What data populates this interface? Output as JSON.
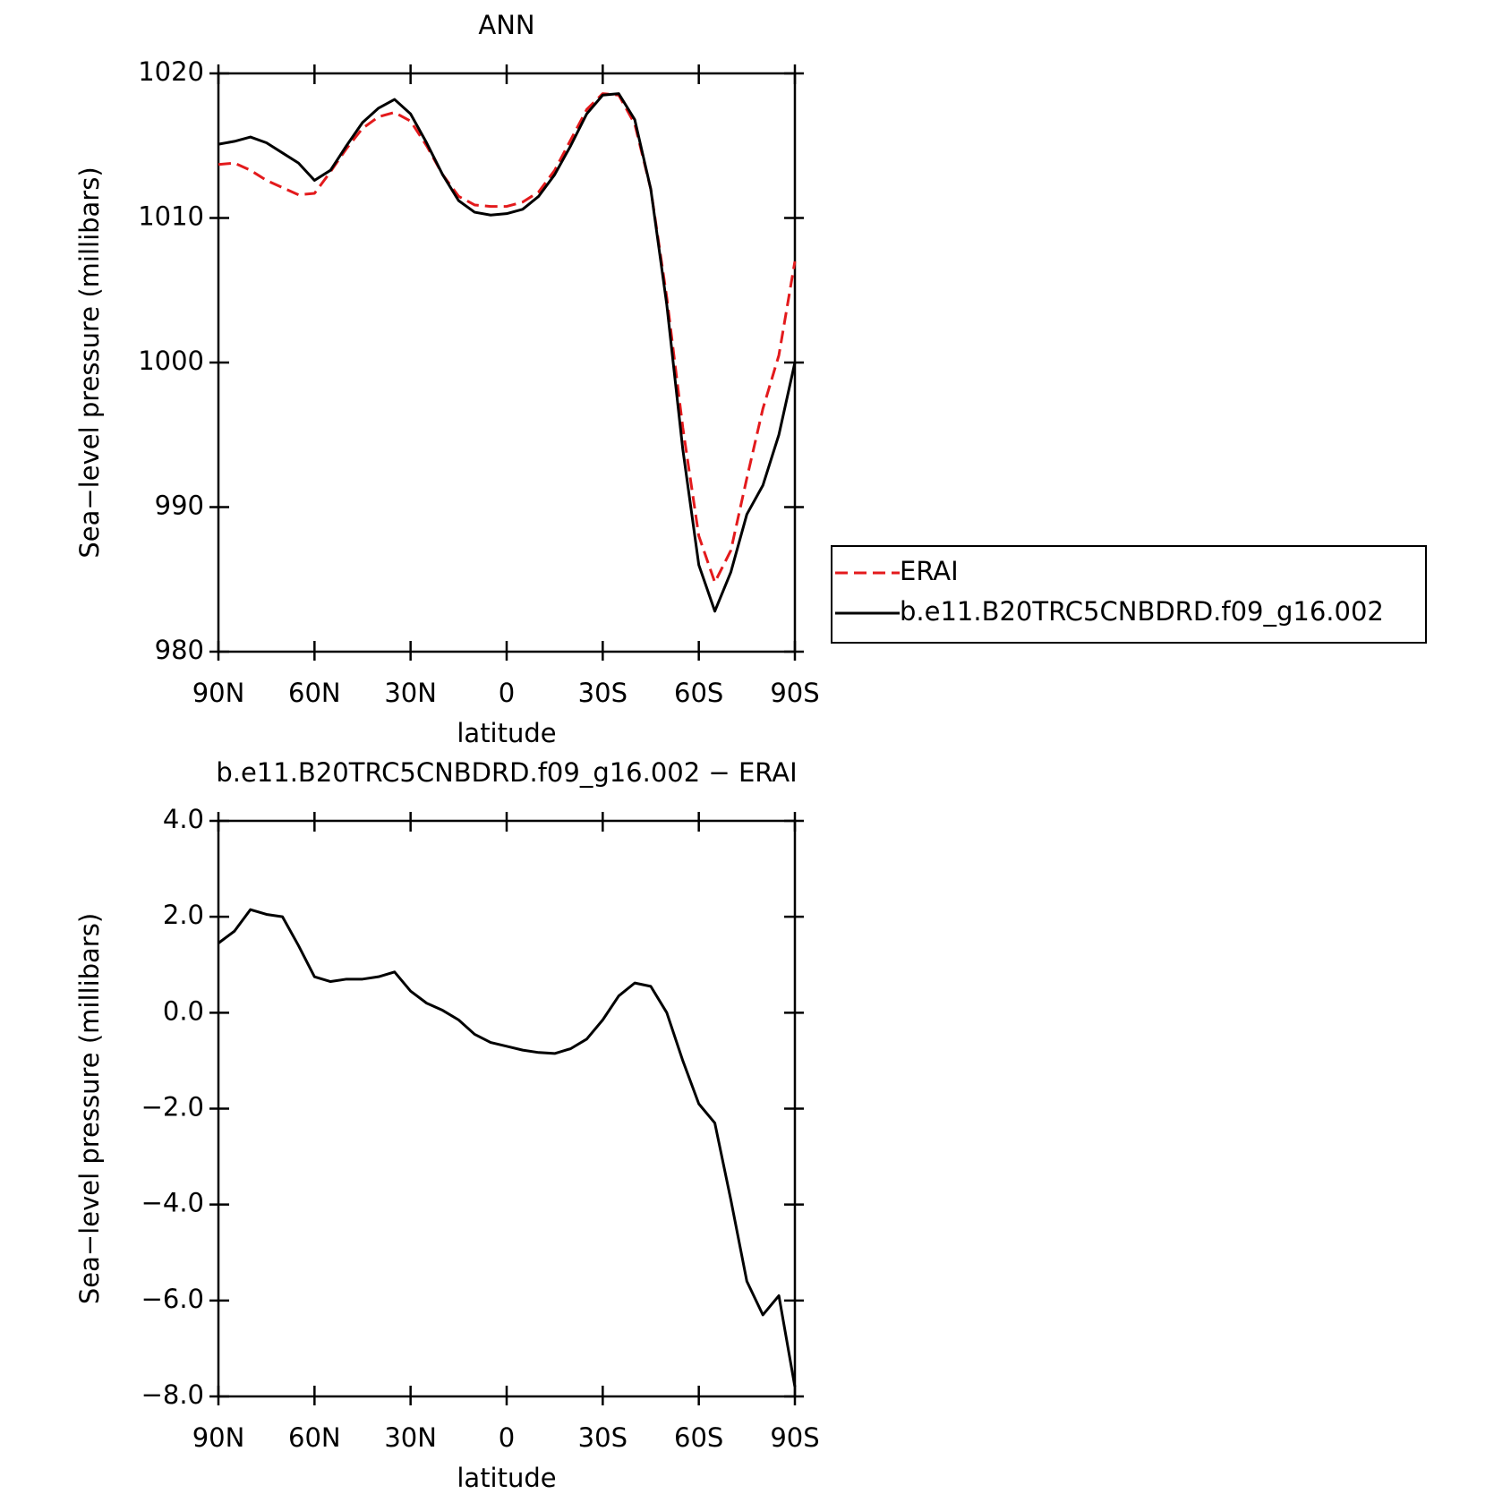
{
  "chart_data": [
    {
      "type": "line",
      "title": "ANN",
      "xlabel": "latitude",
      "ylabel": "Sea−level pressure (millibars)",
      "legend": "right",
      "x": [
        90,
        85,
        80,
        75,
        70,
        65,
        60,
        55,
        50,
        45,
        40,
        35,
        30,
        25,
        20,
        15,
        10,
        5,
        0,
        -5,
        -10,
        -15,
        -20,
        -25,
        -30,
        -35,
        -40,
        -45,
        -50,
        -55,
        -60,
        -65,
        -70,
        -75,
        -80,
        -85,
        -90
      ],
      "xlim": [
        90,
        -90
      ],
      "xticks": [
        {
          "value": 90,
          "label": "90N"
        },
        {
          "value": 60,
          "label": "60N"
        },
        {
          "value": 30,
          "label": "30N"
        },
        0,
        {
          "value": -30,
          "label": "30S"
        },
        {
          "value": -60,
          "label": "60S"
        },
        {
          "value": -90,
          "label": "90S"
        }
      ],
      "ylim": [
        980,
        1020
      ],
      "yticks": [
        980,
        990,
        1000,
        1010,
        1020
      ],
      "series": [
        {
          "name": "ERAI",
          "color": "#e31a1c",
          "dash": true,
          "values": [
            1013.7,
            1013.8,
            1013.3,
            1012.6,
            1012.1,
            1011.6,
            1011.7,
            1013.2,
            1014.8,
            1016.2,
            1017.0,
            1017.3,
            1016.7,
            1015.0,
            1013.0,
            1011.5,
            1010.9,
            1010.8,
            1010.8,
            1011.1,
            1011.8,
            1013.3,
            1015.4,
            1017.5,
            1018.6,
            1018.5,
            1016.5,
            1012.0,
            1004.5,
            995.5,
            988.0,
            984.8,
            987.0,
            992.0,
            996.8,
            1000.5,
            1007.0
          ]
        },
        {
          "name": "b.e11.B20TRC5CNBDRD.f09_g16.002",
          "color": "#000000",
          "dash": false,
          "values": [
            1015.1,
            1015.3,
            1015.6,
            1015.2,
            1014.5,
            1013.8,
            1012.6,
            1013.3,
            1015.0,
            1016.6,
            1017.6,
            1018.2,
            1017.2,
            1015.2,
            1013.0,
            1011.2,
            1010.4,
            1010.2,
            1010.3,
            1010.6,
            1011.5,
            1013.0,
            1015.0,
            1017.2,
            1018.5,
            1018.6,
            1016.8,
            1012.0,
            1004.0,
            994.0,
            986.0,
            982.8,
            985.5,
            989.5,
            991.5,
            995.0,
            1000.0
          ]
        }
      ]
    },
    {
      "type": "line",
      "title": "b.e11.B20TRC5CNBDRD.f09_g16.002 − ERAI",
      "xlabel": "latitude",
      "ylabel": "Sea−level pressure (millibars)",
      "x": [
        90,
        85,
        80,
        75,
        70,
        65,
        60,
        55,
        50,
        45,
        40,
        35,
        30,
        25,
        20,
        15,
        10,
        5,
        0,
        -5,
        -10,
        -15,
        -20,
        -25,
        -30,
        -35,
        -40,
        -45,
        -50,
        -55,
        -60,
        -65,
        -70,
        -75,
        -80,
        -85,
        -90
      ],
      "xlim": [
        90,
        -90
      ],
      "xticks": [
        {
          "value": 90,
          "label": "90N"
        },
        {
          "value": 60,
          "label": "60N"
        },
        {
          "value": 30,
          "label": "30N"
        },
        0,
        {
          "value": -30,
          "label": "30S"
        },
        {
          "value": -60,
          "label": "60S"
        },
        {
          "value": -90,
          "label": "90S"
        }
      ],
      "ylim": [
        -8,
        4
      ],
      "yticks": [
        {
          "value": -8,
          "label": "−8.0"
        },
        {
          "value": -6,
          "label": "−6.0"
        },
        {
          "value": -4,
          "label": "−4.0"
        },
        {
          "value": -2,
          "label": "−2.0"
        },
        {
          "value": 0,
          "label": "0.0"
        },
        {
          "value": 2,
          "label": "2.0"
        },
        {
          "value": 4,
          "label": "4.0"
        }
      ],
      "series": [
        {
          "color": "#000000",
          "values": [
            1.45,
            1.7,
            2.15,
            2.05,
            2.0,
            1.4,
            0.75,
            0.65,
            0.7,
            0.7,
            0.75,
            0.85,
            0.45,
            0.2,
            0.05,
            -0.15,
            -0.45,
            -0.62,
            -0.7,
            -0.78,
            -0.83,
            -0.85,
            -0.75,
            -0.55,
            -0.15,
            0.35,
            0.62,
            0.55,
            0.0,
            -1.0,
            -1.9,
            -2.3,
            -3.9,
            -5.6,
            -6.3,
            -5.9,
            -7.8
          ]
        }
      ]
    }
  ]
}
